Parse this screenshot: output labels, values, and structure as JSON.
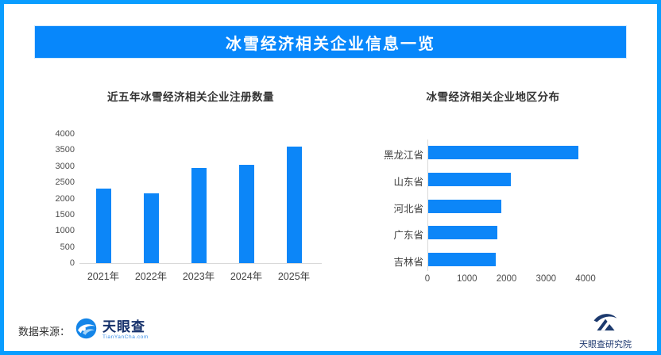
{
  "frame": {
    "border_color": "#0a9dff"
  },
  "header": {
    "title": "冰雪经济相关企业信息一览",
    "background": "#0787fb",
    "text_color": "#ffffff"
  },
  "chart_data": [
    {
      "type": "bar",
      "orientation": "vertical",
      "title": "近五年冰雪经济相关企业注册数量",
      "categories": [
        "2021年",
        "2022年",
        "2023年",
        "2024年",
        "2025年"
      ],
      "values": [
        2300,
        2150,
        2950,
        3050,
        3600
      ],
      "ylim": [
        0,
        4000
      ],
      "yticks": [
        0,
        500,
        1000,
        1500,
        2000,
        2500,
        3000,
        3500,
        4000
      ],
      "grid": false,
      "legend": "none",
      "bar_color": "#0c86f8"
    },
    {
      "type": "bar",
      "orientation": "horizontal",
      "title": "冰雪经济相关企业地区分布",
      "categories": [
        "黑龙江省",
        "山东省",
        "河北省",
        "广东省",
        "吉林省"
      ],
      "values": [
        3800,
        2100,
        1850,
        1750,
        1700
      ],
      "xlim": [
        0,
        4000
      ],
      "xticks": [
        0,
        1000,
        2000,
        3000,
        4000
      ],
      "grid": false,
      "legend": "none",
      "bar_color": "#0c86f8"
    }
  ],
  "footer": {
    "source_label": "数据来源：",
    "tianyancha_logo": {
      "wordmark": "天眼查",
      "subtext": "TianYanCha.com"
    },
    "institute_logo": {
      "label": "天眼查研究院"
    }
  },
  "colors": {
    "bar": "#0c86f8",
    "axis_line": "#d9d9d9",
    "tick_text": "#4d4d4d",
    "category_text": "#404040",
    "chart_title_text": "#333333",
    "brand_navy": "#16316b",
    "brand_blue": "#1485e8"
  }
}
